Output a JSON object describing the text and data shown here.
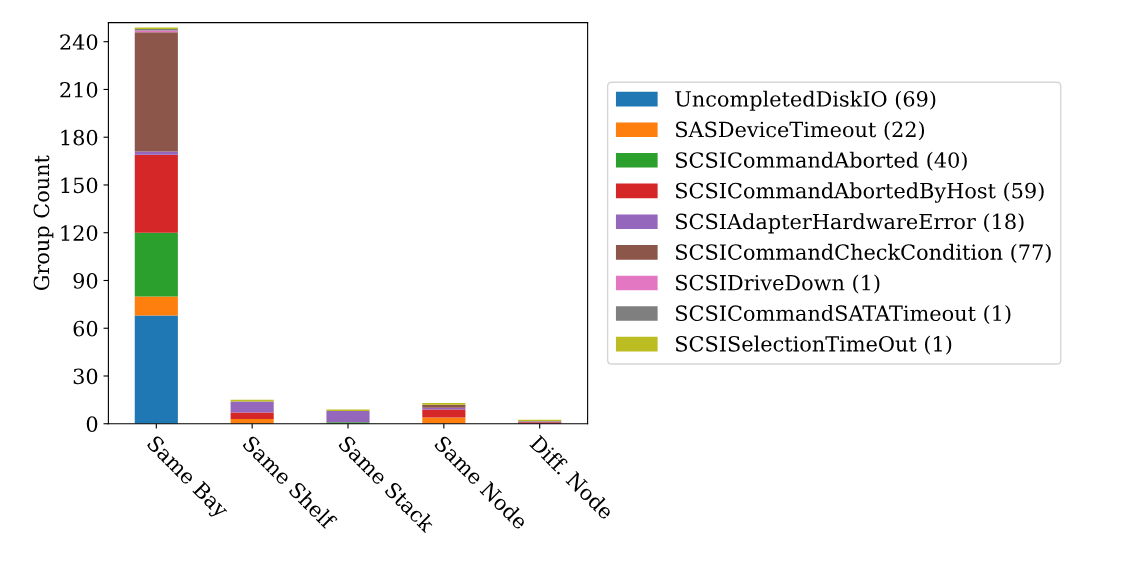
{
  "chart_data": {
    "type": "bar",
    "stacked": true,
    "ylabel": "Group Count",
    "categories": [
      "Same Bay",
      "Same Shelf",
      "Same Stack",
      "Same Node",
      "Diff. Node"
    ],
    "ylim": [
      0,
      252
    ],
    "yticks": [
      0,
      30,
      60,
      90,
      120,
      150,
      180,
      210,
      240
    ],
    "legend": "right",
    "grid": false,
    "series": [
      {
        "name": "UncompletedDiskIO (69)",
        "color": "#1f77b4",
        "values": [
          68,
          0,
          0,
          0,
          0
        ]
      },
      {
        "name": "SASDeviceTimeout (22)",
        "color": "#ff7f0e",
        "values": [
          12,
          3,
          0,
          4,
          0
        ]
      },
      {
        "name": "SCSICommandAborted (40)",
        "color": "#2ca02c",
        "values": [
          40,
          0,
          1,
          0,
          0
        ]
      },
      {
        "name": "SCSICommandAbortedByHost (59)",
        "color": "#d62728",
        "values": [
          49,
          4,
          0,
          5,
          1
        ]
      },
      {
        "name": "SCSIAdapterHardwareError (18)",
        "color": "#9467bd",
        "values": [
          2,
          7,
          7,
          1,
          0.5
        ]
      },
      {
        "name": "SCSICommandCheckCondition (77)",
        "color": "#8c564b",
        "values": [
          75,
          0,
          0,
          2,
          0
        ]
      },
      {
        "name": "SCSIDriveDown (1)",
        "color": "#e377c2",
        "values": [
          1,
          0,
          0,
          0,
          0
        ]
      },
      {
        "name": "SCSICommandSATATimeout (1)",
        "color": "#7f7f7f",
        "values": [
          1,
          0,
          0,
          0,
          0
        ]
      },
      {
        "name": "SCSISelectionTimeOut (1)",
        "color": "#bcbd22",
        "values": [
          1,
          1,
          1,
          1,
          1
        ]
      }
    ]
  }
}
